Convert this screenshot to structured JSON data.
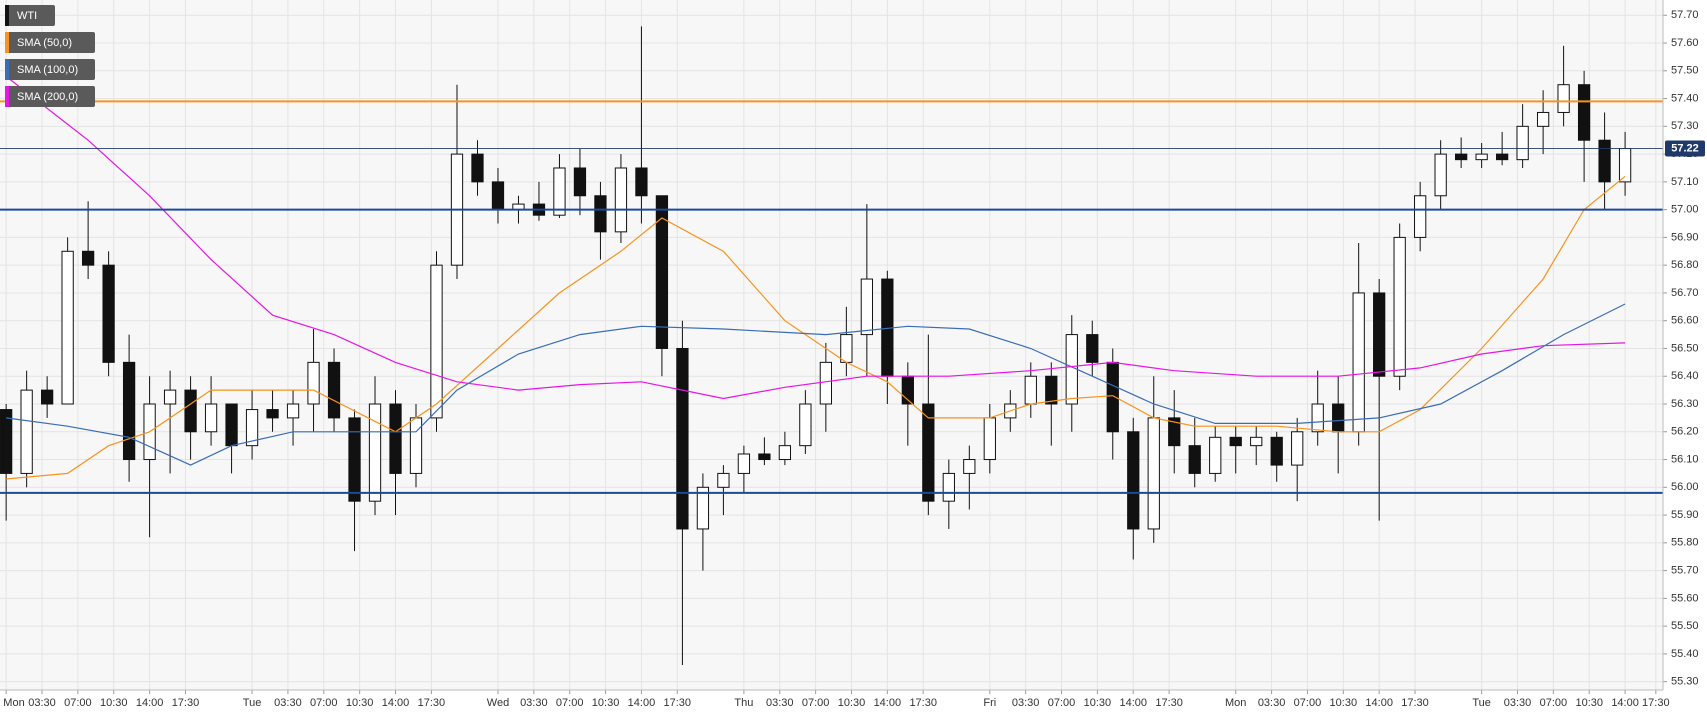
{
  "chart_data": {
    "type": "candlestick",
    "name": "WTI",
    "x": [
      0,
      2,
      4,
      6,
      8,
      10,
      12,
      14,
      16,
      18,
      20,
      22,
      24,
      26,
      28,
      30,
      32,
      34,
      36,
      38,
      40,
      42,
      44,
      46,
      48,
      50,
      52,
      54,
      56,
      58,
      60,
      62,
      64,
      66,
      68,
      70,
      72,
      74,
      76,
      78,
      80,
      82,
      84,
      86,
      88,
      90,
      92,
      94,
      96,
      98,
      100,
      102,
      104,
      106,
      108,
      110,
      112,
      114,
      116,
      118,
      120,
      122,
      124,
      126,
      128,
      130,
      132,
      134,
      136,
      138,
      140,
      142,
      144,
      146,
      148,
      150,
      152,
      154,
      156,
      158
    ],
    "open": [
      56.28,
      56.05,
      56.35,
      56.3,
      56.85,
      56.8,
      56.45,
      56.1,
      56.3,
      56.35,
      56.2,
      56.3,
      56.15,
      56.28,
      56.25,
      56.3,
      56.45,
      56.25,
      55.95,
      56.3,
      56.05,
      56.25,
      56.8,
      57.2,
      57.1,
      57.0,
      57.02,
      56.98,
      57.15,
      57.05,
      56.92,
      57.15,
      57.05,
      56.5,
      55.85,
      56.0,
      56.05,
      56.12,
      56.1,
      56.15,
      56.3,
      56.45,
      56.55,
      56.75,
      56.4,
      56.3,
      55.95,
      56.05,
      56.1,
      56.25,
      56.3,
      56.4,
      56.3,
      56.55,
      56.45,
      56.2,
      55.85,
      56.25,
      56.15,
      56.05,
      56.18,
      56.15,
      56.18,
      56.08,
      56.2,
      56.3,
      56.2,
      56.7,
      56.4,
      56.9,
      57.05,
      57.2,
      57.18,
      57.2,
      57.18,
      57.3,
      57.35,
      57.45,
      57.25,
      57.1
    ],
    "high": [
      56.3,
      56.42,
      56.4,
      56.9,
      57.03,
      56.85,
      56.55,
      56.4,
      56.42,
      56.4,
      56.4,
      56.3,
      56.35,
      56.35,
      56.35,
      56.57,
      56.5,
      56.28,
      56.4,
      56.35,
      56.3,
      56.85,
      57.45,
      57.25,
      57.15,
      57.05,
      57.1,
      57.2,
      57.22,
      57.1,
      57.2,
      57.66,
      57.05,
      56.6,
      56.05,
      56.08,
      56.15,
      56.18,
      56.2,
      56.35,
      56.52,
      56.65,
      57.02,
      56.78,
      56.45,
      56.55,
      56.1,
      56.15,
      56.3,
      56.35,
      56.45,
      56.45,
      56.62,
      56.6,
      56.5,
      56.25,
      56.4,
      56.35,
      56.25,
      56.22,
      56.22,
      56.22,
      56.2,
      56.25,
      56.42,
      56.4,
      56.88,
      56.75,
      56.95,
      57.1,
      57.25,
      57.26,
      57.24,
      57.28,
      57.38,
      57.43,
      57.59,
      57.5,
      57.35,
      57.28
    ],
    "low": [
      55.88,
      56.0,
      56.25,
      56.3,
      56.75,
      56.4,
      56.02,
      55.82,
      56.05,
      56.1,
      56.15,
      56.05,
      56.1,
      56.2,
      56.15,
      56.2,
      56.2,
      55.77,
      55.9,
      55.9,
      56.0,
      56.2,
      56.75,
      57.05,
      56.95,
      56.95,
      56.96,
      56.97,
      56.98,
      56.82,
      56.88,
      56.95,
      56.4,
      55.36,
      55.7,
      55.9,
      55.98,
      56.08,
      56.08,
      56.12,
      56.2,
      56.4,
      56.4,
      56.3,
      56.15,
      55.9,
      55.85,
      55.92,
      56.05,
      56.2,
      56.25,
      56.15,
      56.2,
      56.4,
      56.1,
      55.74,
      55.8,
      56.05,
      56.0,
      56.02,
      56.05,
      56.08,
      56.02,
      55.95,
      56.15,
      56.05,
      56.15,
      55.88,
      56.35,
      56.85,
      57.0,
      57.15,
      57.15,
      57.16,
      57.15,
      57.2,
      57.3,
      57.1,
      57.0,
      57.05
    ],
    "close": [
      56.05,
      56.35,
      56.3,
      56.85,
      56.8,
      56.45,
      56.1,
      56.3,
      56.35,
      56.2,
      56.3,
      56.15,
      56.28,
      56.25,
      56.3,
      56.45,
      56.25,
      55.95,
      56.3,
      56.05,
      56.25,
      56.8,
      57.2,
      57.1,
      57.0,
      57.02,
      56.98,
      57.15,
      57.05,
      56.92,
      57.15,
      57.05,
      56.5,
      55.85,
      56.0,
      56.05,
      56.12,
      56.1,
      56.15,
      56.3,
      56.45,
      56.55,
      56.75,
      56.4,
      56.3,
      55.95,
      56.05,
      56.1,
      56.25,
      56.3,
      56.4,
      56.3,
      56.55,
      56.45,
      56.2,
      55.85,
      56.25,
      56.15,
      56.05,
      56.18,
      56.15,
      56.18,
      56.08,
      56.2,
      56.3,
      56.2,
      56.7,
      56.4,
      56.9,
      57.05,
      57.2,
      57.18,
      57.2,
      57.18,
      57.3,
      57.35,
      57.45,
      57.25,
      57.1,
      57.22
    ],
    "series": [
      {
        "name": "SMA (50,0)",
        "color": "#f7931e",
        "x": [
          0,
          6,
          10,
          14,
          20,
          30,
          38,
          42,
          48,
          54,
          60,
          64,
          70,
          76,
          82,
          86,
          90,
          96,
          100,
          104,
          108,
          112,
          116,
          124,
          130,
          134,
          138,
          144,
          150,
          154,
          158
        ],
        "values": [
          56.03,
          56.05,
          56.15,
          56.2,
          56.35,
          56.35,
          56.2,
          56.3,
          56.5,
          56.7,
          56.85,
          56.97,
          56.85,
          56.6,
          56.45,
          56.38,
          56.25,
          56.25,
          56.3,
          56.32,
          56.33,
          56.25,
          56.22,
          56.22,
          56.2,
          56.2,
          56.28,
          56.5,
          56.75,
          57.0,
          57.12
        ]
      },
      {
        "name": "SMA (100,0)",
        "color": "#3a6db5",
        "x": [
          0,
          6,
          12,
          18,
          22,
          28,
          34,
          40,
          44,
          50,
          56,
          62,
          70,
          80,
          88,
          94,
          100,
          106,
          112,
          118,
          126,
          134,
          140,
          146,
          152,
          158
        ],
        "values": [
          56.25,
          56.22,
          56.18,
          56.08,
          56.15,
          56.2,
          56.2,
          56.2,
          56.35,
          56.48,
          56.55,
          56.58,
          56.57,
          56.55,
          56.58,
          56.57,
          56.5,
          56.4,
          56.3,
          56.23,
          56.23,
          56.25,
          56.3,
          56.42,
          56.55,
          56.66
        ]
      },
      {
        "name": "SMA (200,0)",
        "color": "#e815e8",
        "x": [
          0,
          8,
          14,
          20,
          26,
          32,
          38,
          44,
          50,
          56,
          62,
          66,
          70,
          76,
          84,
          92,
          100,
          108,
          114,
          122,
          130,
          138,
          144,
          150,
          158
        ],
        "values": [
          57.48,
          57.25,
          57.05,
          56.82,
          56.62,
          56.55,
          56.45,
          56.38,
          56.35,
          56.37,
          56.38,
          56.35,
          56.32,
          56.36,
          56.4,
          56.4,
          56.42,
          56.45,
          56.42,
          56.4,
          56.4,
          56.43,
          56.48,
          56.51,
          56.52
        ]
      }
    ],
    "levels": [
      {
        "value": 57.39,
        "color": "#f7931e"
      },
      {
        "value": 57.0,
        "color": "#1a4a9a"
      },
      {
        "value": 55.98,
        "color": "#1a4a9a"
      }
    ],
    "last_price": 57.22,
    "xlim": [
      -0.6,
      161.7
    ],
    "xticks": [
      {
        "value": 0,
        "label": "Mon"
      },
      {
        "value": 3.5,
        "label": "03:30"
      },
      {
        "value": 7,
        "label": "07:00"
      },
      {
        "value": 10.5,
        "label": "10:30"
      },
      {
        "value": 14,
        "label": "14:00"
      },
      {
        "value": 17.5,
        "label": "17:30"
      },
      {
        "value": 24,
        "label": "Tue"
      },
      {
        "value": 27.5,
        "label": "03:30"
      },
      {
        "value": 31,
        "label": "07:00"
      },
      {
        "value": 34.5,
        "label": "10:30"
      },
      {
        "value": 38,
        "label": "14:00"
      },
      {
        "value": 41.5,
        "label": "17:30"
      },
      {
        "value": 48,
        "label": "Wed"
      },
      {
        "value": 51.5,
        "label": "03:30"
      },
      {
        "value": 55,
        "label": "07:00"
      },
      {
        "value": 58.5,
        "label": "10:30"
      },
      {
        "value": 62,
        "label": "14:00"
      },
      {
        "value": 65.5,
        "label": "17:30"
      },
      {
        "value": 72,
        "label": "Thu"
      },
      {
        "value": 75.5,
        "label": "03:30"
      },
      {
        "value": 79,
        "label": "07:00"
      },
      {
        "value": 82.5,
        "label": "10:30"
      },
      {
        "value": 86,
        "label": "14:00"
      },
      {
        "value": 89.5,
        "label": "17:30"
      },
      {
        "value": 96,
        "label": "Fri"
      },
      {
        "value": 99.5,
        "label": "03:30"
      },
      {
        "value": 103,
        "label": "07:00"
      },
      {
        "value": 106.5,
        "label": "10:30"
      },
      {
        "value": 110,
        "label": "14:00"
      },
      {
        "value": 113.5,
        "label": "17:30"
      },
      {
        "value": 120,
        "label": "Mon"
      },
      {
        "value": 123.5,
        "label": "03:30"
      },
      {
        "value": 127,
        "label": "07:00"
      },
      {
        "value": 130.5,
        "label": "10:30"
      },
      {
        "value": 134,
        "label": "14:00"
      },
      {
        "value": 137.5,
        "label": "17:30"
      },
      {
        "value": 144,
        "label": "Tue"
      },
      {
        "value": 147.5,
        "label": "03:30"
      },
      {
        "value": 151,
        "label": "07:00"
      },
      {
        "value": 154.5,
        "label": "10:30"
      },
      {
        "value": 158,
        "label": "14:00"
      },
      {
        "value": 161,
        "label": "17:30"
      }
    ],
    "ylim": [
      55.27,
      57.755
    ],
    "yticks": [
      {
        "value": 55.3,
        "label": "55.30"
      },
      {
        "value": 55.4,
        "label": "55.40"
      },
      {
        "value": 55.5,
        "label": "55.50"
      },
      {
        "value": 55.6,
        "label": "55.60"
      },
      {
        "value": 55.7,
        "label": "55.70"
      },
      {
        "value": 55.8,
        "label": "55.80"
      },
      {
        "value": 55.9,
        "label": "55.90"
      },
      {
        "value": 56.0,
        "label": "56.00"
      },
      {
        "value": 56.1,
        "label": "56.10"
      },
      {
        "value": 56.2,
        "label": "56.20"
      },
      {
        "value": 56.3,
        "label": "56.30"
      },
      {
        "value": 56.4,
        "label": "56.40"
      },
      {
        "value": 56.5,
        "label": "56.50"
      },
      {
        "value": 56.6,
        "label": "56.60"
      },
      {
        "value": 56.7,
        "label": "56.70"
      },
      {
        "value": 56.8,
        "label": "56.80"
      },
      {
        "value": 56.9,
        "label": "56.90"
      },
      {
        "value": 57.0,
        "label": "57.00"
      },
      {
        "value": 57.1,
        "label": "57.10"
      },
      {
        "value": 57.2,
        "label": "57.20"
      },
      {
        "value": 57.3,
        "label": "57.30"
      },
      {
        "value": 57.4,
        "label": "57.40"
      },
      {
        "value": 57.5,
        "label": "57.50"
      },
      {
        "value": 57.6,
        "label": "57.60"
      },
      {
        "value": 57.7,
        "label": "57.70"
      }
    ],
    "grid": true
  }
}
